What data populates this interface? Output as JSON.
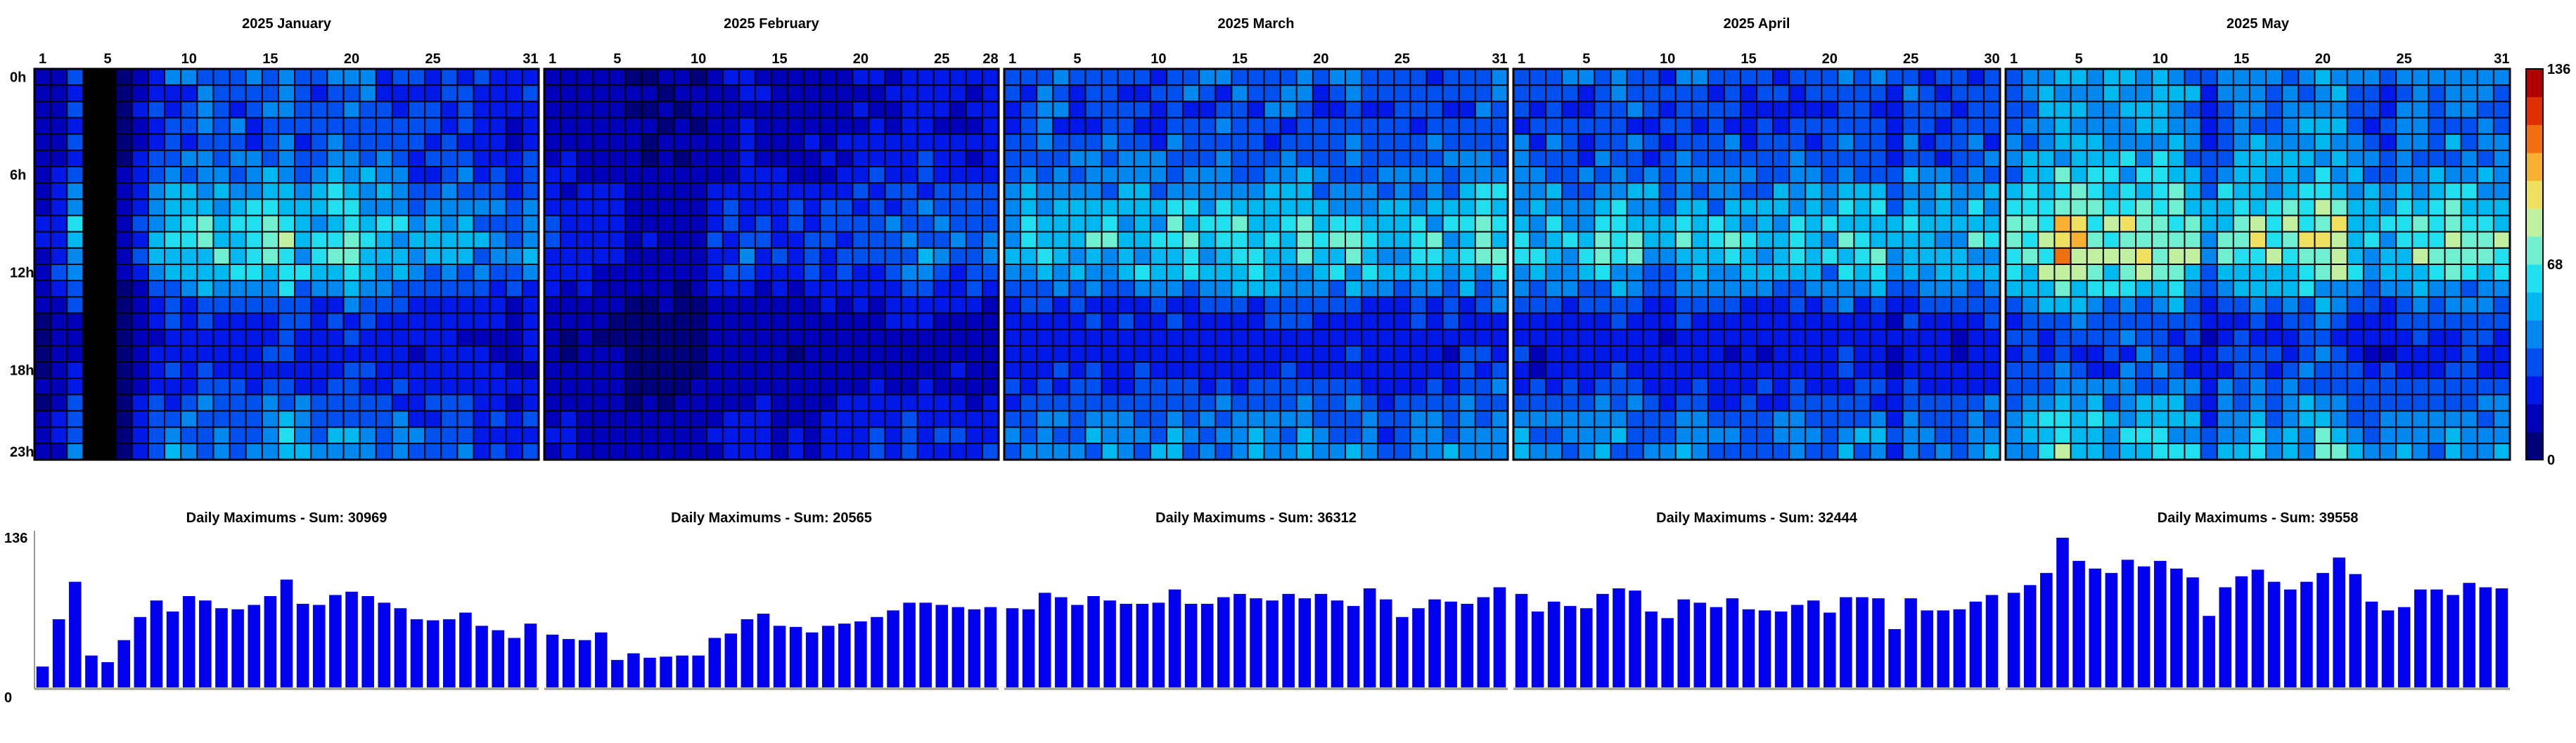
{
  "chart_data": [
    {
      "type": "heatmap",
      "description_axes": "columns = day of month, rows = hour of day",
      "row_tick_labels": [
        "0h",
        "6h",
        "12h",
        "18h",
        "23h"
      ],
      "row_tick_hours": [
        0,
        6,
        12,
        18,
        23
      ],
      "colorbar": {
        "min": 0,
        "max": 136,
        "tick_labels": [
          "136",
          "68",
          "0"
        ],
        "tick_values": [
          136,
          68,
          0
        ]
      },
      "colors": [
        "#00007a",
        "#0000b8",
        "#0018e8",
        "#0050f0",
        "#0088f0",
        "#00b8f0",
        "#20e0f0",
        "#70f0d0",
        "#c0f0a0",
        "#f0e060",
        "#f8b030",
        "#f07010",
        "#e03000",
        "#b00000"
      ],
      "months": [
        {
          "title": "2025 January",
          "days": 31,
          "day_tick_labels": [
            "1",
            "5",
            "10",
            "15",
            "20",
            "25",
            "31"
          ],
          "day_tick_values": [
            1,
            5,
            10,
            15,
            20,
            25,
            31
          ],
          "profile": [
            18,
            28,
            50,
            10,
            9,
            14,
            30,
            48,
            58,
            55,
            62,
            60,
            56,
            55,
            64,
            72,
            58,
            56,
            62,
            64,
            60,
            56,
            52,
            46,
            47,
            48,
            50,
            42,
            40,
            36,
            46
          ],
          "missing": []
        },
        {
          "title": "2025 February",
          "days": 28,
          "day_tick_labels": [
            "1",
            "5",
            "10",
            "15",
            "20",
            "25",
            "28"
          ],
          "day_tick_values": [
            1,
            5,
            10,
            15,
            20,
            25,
            28
          ],
          "profile": [
            28,
            27,
            26,
            24,
            22,
            18,
            17,
            16,
            16,
            17,
            25,
            30,
            34,
            30,
            28,
            27,
            29,
            30,
            32,
            34,
            36,
            38,
            40,
            40,
            38,
            37,
            36,
            36
          ],
          "missing": []
        },
        {
          "title": "2025 March",
          "days": 31,
          "day_tick_labels": [
            "1",
            "5",
            "10",
            "15",
            "20",
            "25",
            "31"
          ],
          "day_tick_values": [
            1,
            5,
            10,
            15,
            20,
            25,
            31
          ],
          "profile": [
            52,
            52,
            60,
            58,
            55,
            60,
            57,
            55,
            57,
            56,
            62,
            56,
            56,
            60,
            62,
            60,
            58,
            60,
            62,
            58,
            56,
            62,
            56,
            50,
            55,
            58,
            56,
            56,
            60,
            62,
            64
          ],
          "missing": []
        },
        {
          "title": "2025 April",
          "days": 30,
          "day_tick_labels": [
            "1",
            "5",
            "10",
            "15",
            "20",
            "25",
            "30"
          ],
          "day_tick_values": [
            1,
            5,
            10,
            15,
            20,
            25,
            30
          ],
          "profile": [
            58,
            52,
            56,
            54,
            54,
            60,
            62,
            60,
            50,
            48,
            56,
            54,
            52,
            56,
            52,
            50,
            50,
            54,
            56,
            52,
            60,
            58,
            58,
            42,
            58,
            52,
            52,
            52,
            58,
            58
          ],
          "missing": []
        },
        {
          "title": "2025 May",
          "days": 31,
          "day_tick_labels": [
            "1",
            "5",
            "10",
            "15",
            "20",
            "25",
            "31"
          ],
          "day_tick_values": [
            1,
            5,
            10,
            15,
            20,
            25,
            31
          ],
          "profile": [
            62,
            70,
            78,
            90,
            82,
            78,
            74,
            82,
            78,
            80,
            76,
            70,
            48,
            64,
            70,
            74,
            66,
            70,
            74,
            82,
            78,
            60,
            55,
            56,
            64,
            66,
            62,
            70,
            66,
            66,
            64
          ],
          "missing": []
        }
      ]
    },
    {
      "type": "bar",
      "ylim": [
        0,
        136
      ],
      "y_tick_labels": [
        "136",
        "0"
      ],
      "y_tick_values": [
        136,
        0
      ],
      "color": "#0000ee",
      "months": [
        {
          "title": "Daily Maximums - Sum: 30969",
          "values": [
            19,
            62,
            96,
            29,
            23,
            43,
            64,
            79,
            69,
            83,
            79,
            72,
            71,
            75,
            83,
            98,
            76,
            75,
            84,
            87,
            83,
            77,
            72,
            62,
            61,
            62,
            68,
            56,
            52,
            45,
            58
          ]
        },
        {
          "title": "Daily Maximums - Sum: 20565",
          "values": [
            48,
            44,
            43,
            50,
            25,
            31,
            27,
            28,
            29,
            29,
            45,
            49,
            62,
            67,
            56,
            55,
            50,
            56,
            58,
            60,
            64,
            70,
            77,
            77,
            75,
            73,
            71,
            73
          ]
        },
        {
          "title": "Daily Maximums - Sum: 36312",
          "values": [
            72,
            71,
            86,
            82,
            75,
            83,
            79,
            76,
            76,
            77,
            89,
            76,
            76,
            82,
            85,
            81,
            79,
            85,
            81,
            85,
            79,
            74,
            90,
            80,
            64,
            72,
            80,
            78,
            76,
            82,
            91
          ]
        },
        {
          "title": "Daily Maximums - Sum: 32444",
          "values": [
            85,
            69,
            78,
            74,
            72,
            85,
            90,
            88,
            69,
            63,
            80,
            77,
            73,
            81,
            71,
            70,
            69,
            75,
            79,
            68,
            82,
            82,
            81,
            53,
            81,
            70,
            70,
            71,
            78,
            84
          ]
        },
        {
          "title": "Daily Maximums - Sum: 39558",
          "values": [
            86,
            93,
            104,
            136,
            115,
            108,
            104,
            116,
            110,
            115,
            108,
            100,
            65,
            91,
            101,
            107,
            96,
            89,
            96,
            104,
            118,
            103,
            78,
            70,
            73,
            89,
            89,
            84,
            95,
            91,
            90
          ]
        }
      ]
    }
  ]
}
